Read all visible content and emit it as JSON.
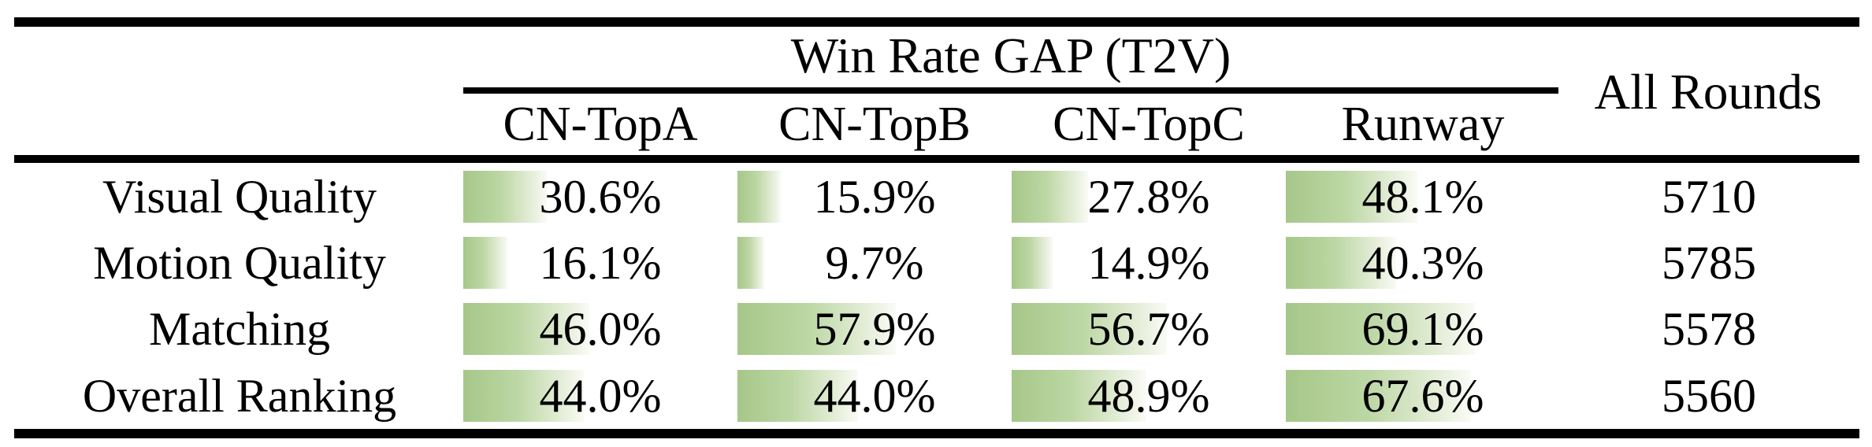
{
  "theme": {
    "bg": "#ffffff",
    "text": "#000000",
    "rule": "#000000",
    "bar-start": "#a6c789",
    "bar-mid": "#bcd7a4",
    "bar-light": "#e9f0de",
    "bar-end": "#f9fbf5"
  },
  "table": {
    "group_header": "Win Rate GAP (T2V)",
    "all_rounds_header": "All Rounds",
    "columns": [
      "CN-TopA",
      "CN-TopB",
      "CN-TopC",
      "Runway"
    ],
    "rows": [
      {
        "label": "Visual Quality",
        "cells": [
          {
            "value": 30.6,
            "display": "30.6%"
          },
          {
            "value": 15.9,
            "display": "15.9%"
          },
          {
            "value": 27.8,
            "display": "27.8%"
          },
          {
            "value": 48.1,
            "display": "48.1%"
          }
        ],
        "all_rounds": "5710"
      },
      {
        "label": "Motion Quality",
        "cells": [
          {
            "value": 16.1,
            "display": "16.1%"
          },
          {
            "value": 9.7,
            "display": "9.7%"
          },
          {
            "value": 14.9,
            "display": "14.9%"
          },
          {
            "value": 40.3,
            "display": "40.3%"
          }
        ],
        "all_rounds": "5785"
      },
      {
        "label": "Matching",
        "cells": [
          {
            "value": 46.0,
            "display": "46.0%"
          },
          {
            "value": 57.9,
            "display": "57.9%"
          },
          {
            "value": 56.7,
            "display": "56.7%"
          },
          {
            "value": 69.1,
            "display": "69.1%"
          }
        ],
        "all_rounds": "5578"
      },
      {
        "label": "Overall Ranking",
        "cells": [
          {
            "value": 44.0,
            "display": "44.0%"
          },
          {
            "value": 44.0,
            "display": "44.0%"
          },
          {
            "value": 48.9,
            "display": "48.9%"
          },
          {
            "value": 67.6,
            "display": "67.6%"
          }
        ],
        "all_rounds": "5560"
      }
    ]
  },
  "chart_data": {
    "type": "table",
    "title": "Win Rate GAP (T2V)",
    "columns": [
      "CN-TopA",
      "CN-TopB",
      "CN-TopC",
      "Runway",
      "All Rounds"
    ],
    "row_labels": [
      "Visual Quality",
      "Motion Quality",
      "Matching",
      "Overall Ranking"
    ],
    "win_rate_gap_percent": [
      [
        30.6,
        15.9,
        27.8,
        48.1
      ],
      [
        16.1,
        9.7,
        14.9,
        40.3
      ],
      [
        46.0,
        57.9,
        56.7,
        69.1
      ],
      [
        44.0,
        44.0,
        48.9,
        67.6
      ]
    ],
    "all_rounds": [
      5710,
      5785,
      5578,
      5560
    ],
    "bar_scale": "data bars span 0-100% of cell width",
    "bar_color": "#a6c789"
  }
}
